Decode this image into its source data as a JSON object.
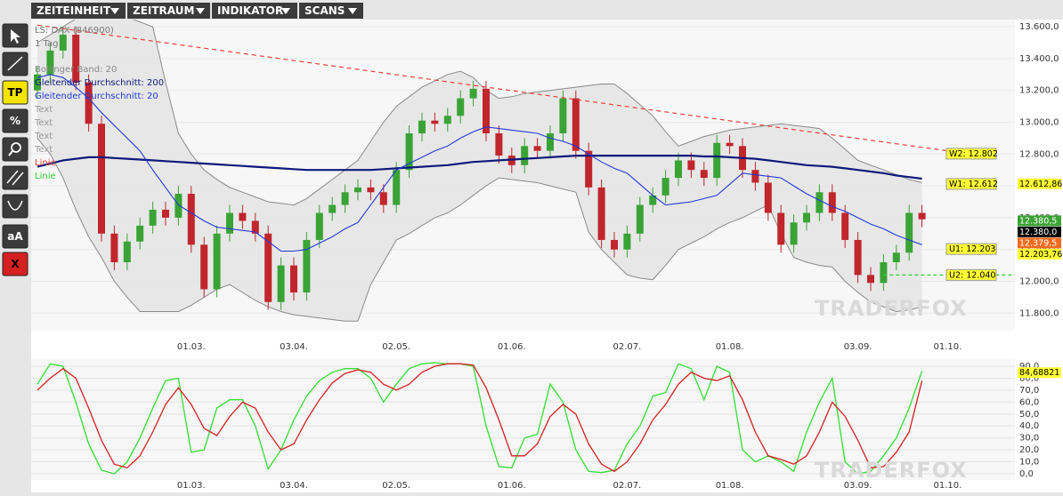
{
  "toolbar": [
    "ZEITEINHEIT",
    "ZEITRAUM",
    "INDIKATOR",
    "SCANS"
  ],
  "tools": [
    "TP",
    "%",
    "aA",
    "X"
  ],
  "watermark": "TRADERFOX",
  "chart_data": [
    {
      "type": "candlestick",
      "info": [
        "LS: DAX (846900)",
        "1 Tag"
      ],
      "categories": [
        null,
        null,
        null,
        null,
        null,
        null,
        null,
        null,
        null,
        null,
        null,
        null,
        "01.03.",
        null,
        null,
        null,
        null,
        null,
        null,
        null,
        "03.04.",
        null,
        null,
        null,
        null,
        null,
        null,
        null,
        "02.05.",
        null,
        null,
        null,
        null,
        null,
        null,
        null,
        null,
        "01.06.",
        null,
        null,
        null,
        null,
        null,
        null,
        null,
        null,
        "02.07.",
        null,
        null,
        null,
        null,
        null,
        null,
        null,
        "01.08.",
        null,
        null,
        null,
        null,
        null,
        null,
        null,
        null,
        null,
        "03.09.",
        null,
        null,
        null,
        null,
        null,
        null,
        "01.10."
      ],
      "open": [
        13200,
        13300,
        13450,
        13550,
        13250,
        12990,
        12300,
        12120,
        12250,
        12350,
        12450,
        12400,
        12550,
        12230,
        11950,
        12300,
        12430,
        12380,
        12300,
        11870,
        12100,
        11930,
        12260,
        12430,
        12480,
        12560,
        12590,
        12560,
        12480,
        12700,
        12930,
        13010,
        12990,
        13040,
        13150,
        13210,
        12930,
        12790,
        12730,
        12850,
        12820,
        12930,
        13150,
        12820,
        12590,
        12260,
        12200,
        12300,
        12480,
        12540,
        12650,
        12760,
        12700,
        12650,
        12870,
        12850,
        12700,
        12620,
        12430,
        12230,
        12370,
        12430,
        12560,
        12430,
        12260,
        12040,
        11990,
        12120,
        12180,
        12430,
        null,
        null
      ],
      "high": [
        13350,
        13500,
        13600,
        13600,
        13300,
        13040,
        12350,
        12300,
        12400,
        12500,
        12500,
        12600,
        12600,
        12280,
        12350,
        12480,
        12480,
        12430,
        12350,
        12150,
        12150,
        12310,
        12480,
        12530,
        12610,
        12640,
        12640,
        12610,
        12750,
        12980,
        13060,
        13060,
        13090,
        13200,
        13260,
        13260,
        12980,
        12840,
        12900,
        12900,
        12980,
        13200,
        13200,
        12870,
        12640,
        12310,
        12350,
        12530,
        12590,
        12700,
        12810,
        12810,
        12750,
        12920,
        12920,
        12900,
        12750,
        12670,
        12480,
        12420,
        12480,
        12610,
        12610,
        12480,
        12310,
        12090,
        12170,
        12230,
        12480,
        12480,
        null,
        null
      ],
      "low": [
        13150,
        13250,
        13400,
        13200,
        12940,
        12250,
        12070,
        12070,
        12200,
        12300,
        12350,
        12350,
        12180,
        11900,
        11900,
        12250,
        12330,
        12250,
        11820,
        11820,
        11880,
        11880,
        12210,
        12380,
        12430,
        12510,
        12510,
        12430,
        12430,
        12650,
        12880,
        12940,
        12940,
        12990,
        13100,
        12880,
        12740,
        12680,
        12680,
        12770,
        12770,
        12880,
        12770,
        12540,
        12210,
        12150,
        12150,
        12250,
        12430,
        12490,
        12600,
        12650,
        12600,
        12600,
        12800,
        12650,
        12570,
        12380,
        12180,
        12180,
        12320,
        12380,
        12380,
        12210,
        11990,
        11940,
        11940,
        12070,
        12130,
        12340,
        null,
        null
      ],
      "close": [
        13300,
        13450,
        13550,
        13250,
        12990,
        12300,
        12120,
        12250,
        12350,
        12450,
        12400,
        12550,
        12230,
        11950,
        12300,
        12430,
        12380,
        12300,
        11870,
        12100,
        11930,
        12260,
        12430,
        12480,
        12560,
        12590,
        12560,
        12480,
        12700,
        12930,
        13010,
        12990,
        13040,
        13150,
        13210,
        12930,
        12790,
        12730,
        12850,
        12820,
        12930,
        13150,
        12820,
        12590,
        12260,
        12200,
        12300,
        12480,
        12540,
        12650,
        12760,
        12700,
        12650,
        12870,
        12850,
        12700,
        12620,
        12430,
        12230,
        12370,
        12430,
        12560,
        12430,
        12260,
        12040,
        11990,
        12120,
        12180,
        12430,
        12390,
        null,
        null
      ],
      "up_color": "#3aa335",
      "down_color": "#c0262c",
      "bands": {
        "name": "Bollinger Band: 20",
        "color": "#8a8a8a",
        "fill": "#e4e4e4",
        "upper": [
          13500,
          13550,
          13600,
          13650,
          13680,
          13680,
          13680,
          13660,
          13630,
          13600,
          13250,
          12930,
          12800,
          12700,
          12640,
          12590,
          12560,
          12530,
          12500,
          12490,
          12480,
          12520,
          12580,
          12640,
          12700,
          12760,
          12880,
          13000,
          13100,
          13160,
          13220,
          13260,
          13300,
          13320,
          13280,
          13200,
          13150,
          13160,
          13180,
          13190,
          13200,
          13210,
          13220,
          13230,
          13240,
          13240,
          13180,
          13110,
          13040,
          12940,
          12850,
          12880,
          12910,
          12930,
          12950,
          12960,
          12970,
          12980,
          12990,
          12980,
          12970,
          12960,
          12900,
          12830,
          12760,
          12730,
          12700,
          12670,
          12640,
          12620,
          null,
          null
        ],
        "lower": [
          12900,
          12800,
          12650,
          12450,
          12280,
          12150,
          12000,
          11900,
          11810,
          11810,
          11810,
          11810,
          11850,
          11900,
          11950,
          11980,
          11930,
          11880,
          11840,
          11810,
          11790,
          11780,
          11770,
          11760,
          11750,
          11750,
          11980,
          12120,
          12260,
          12300,
          12350,
          12400,
          12430,
          12480,
          12540,
          12600,
          12650,
          12640,
          12630,
          12620,
          12600,
          12580,
          12560,
          12310,
          12200,
          12120,
          12040,
          12020,
          12010,
          12100,
          12200,
          12240,
          12280,
          12330,
          12370,
          12400,
          12440,
          12480,
          12300,
          12150,
          12120,
          12100,
          12090,
          12000,
          11930,
          11870,
          11840,
          11810,
          11820,
          11840,
          null,
          null
        ]
      },
      "series": [
        {
          "name": "Gleitender Durchschnitt: 200",
          "color": "#0d1a7a",
          "width": 2.2,
          "values": [
            12720,
            12740,
            12760,
            12770,
            12780,
            12780,
            12775,
            12770,
            12765,
            12760,
            12755,
            12750,
            12745,
            12740,
            12735,
            12730,
            12725,
            12720,
            12715,
            12710,
            12705,
            12700,
            12700,
            12700,
            12700,
            12700,
            12700,
            12705,
            12710,
            12715,
            12720,
            12725,
            12730,
            12740,
            12750,
            12755,
            12760,
            12765,
            12770,
            12775,
            12780,
            12785,
            12790,
            12790,
            12790,
            12790,
            12790,
            12790,
            12790,
            12790,
            12790,
            12790,
            12785,
            12785,
            12780,
            12775,
            12770,
            12760,
            12750,
            12740,
            12730,
            12725,
            12720,
            12710,
            12700,
            12690,
            12680,
            12665,
            12655,
            12645,
            null,
            null
          ]
        },
        {
          "name": "Gleitender Durchschnitt: 20",
          "color": "#2438d6",
          "width": 1.1,
          "values": [
            13280,
            13300,
            13280,
            13220,
            13150,
            13060,
            12980,
            12900,
            12820,
            12700,
            12590,
            12480,
            12430,
            12380,
            12340,
            12330,
            12320,
            12310,
            12250,
            12190,
            12190,
            12200,
            12240,
            12280,
            12330,
            12370,
            12480,
            12590,
            12700,
            12740,
            12780,
            12820,
            12850,
            12900,
            12940,
            12970,
            12960,
            12950,
            12940,
            12930,
            12900,
            12880,
            12850,
            12800,
            12750,
            12710,
            12680,
            12610,
            12540,
            12480,
            12490,
            12500,
            12520,
            12540,
            12610,
            12680,
            12670,
            12660,
            12650,
            12600,
            12550,
            12510,
            12470,
            12440,
            12400,
            12360,
            12330,
            12290,
            12260,
            12230,
            null,
            null
          ]
        }
      ],
      "drawing_labels": [
        {
          "text": "Text",
          "color": "#999999"
        },
        {
          "text": "Text",
          "color": "#999999"
        },
        {
          "text": "Text",
          "color": "#999999"
        },
        {
          "text": "Text",
          "color": "#999999"
        }
      ],
      "trend_line": {
        "name": "Linie",
        "color": "#e8413c",
        "values": [
          13610,
          12820
        ]
      },
      "level_line": {
        "name": "Linie",
        "color": "#33cc33",
        "value": 12040
      },
      "levels": [
        {
          "label": "W2: 12.802",
          "value": 12802
        },
        {
          "label": "W1: 12.612",
          "value": 12612
        },
        {
          "label": "U1: 12.203",
          "value": 12203
        },
        {
          "label": "U2: 12.040",
          "value": 12040
        }
      ],
      "price_labels": [
        {
          "value": 12612.86,
          "label": "12.612,86",
          "color": "#ffff33",
          "text_color": "#000000"
        },
        {
          "value": 12380.5,
          "label": "12.380,5",
          "color": "#3aa335",
          "text_color": "#ffffff"
        },
        {
          "value": 12380.0,
          "label": "12.380,0",
          "color": "#000000",
          "text_color": "#ffffff"
        },
        {
          "value": 12379.5,
          "label": "12.379,5",
          "color": "#f26b1d",
          "text_color": "#ffffff"
        },
        {
          "value": 12203.76,
          "label": "12.203,76",
          "color": "#ffff33",
          "text_color": "#000000"
        }
      ],
      "ylim": [
        11690,
        13645
      ],
      "yticks": [
        {
          "value": 11800,
          "label": "11.800,0"
        },
        {
          "value": 12000,
          "label": "12.000,0"
        },
        {
          "value": 12200,
          "label": "12.200,0"
        },
        {
          "value": 12400,
          "label": "12.400,0"
        },
        {
          "value": 12600,
          "label": "12.600,0"
        },
        {
          "value": 12800,
          "label": "12.800,0"
        },
        {
          "value": 13000,
          "label": "13.000,0"
        },
        {
          "value": 13200,
          "label": "13.200,0"
        },
        {
          "value": 13400,
          "label": "13.400,0"
        },
        {
          "value": 13600,
          "label": "13.600,0"
        }
      ]
    },
    {
      "type": "line",
      "categories": [
        null,
        null,
        null,
        null,
        null,
        null,
        null,
        null,
        null,
        null,
        null,
        null,
        "01.03.",
        null,
        null,
        null,
        null,
        null,
        null,
        null,
        "03.04.",
        null,
        null,
        null,
        null,
        null,
        null,
        null,
        "02.05.",
        null,
        null,
        null,
        null,
        null,
        null,
        null,
        null,
        "01.06.",
        null,
        null,
        null,
        null,
        null,
        null,
        null,
        null,
        "02.07.",
        null,
        null,
        null,
        null,
        null,
        null,
        null,
        "01.08.",
        null,
        null,
        null,
        null,
        null,
        null,
        null,
        null,
        null,
        "03.09.",
        null,
        null,
        null,
        null,
        null,
        null,
        "01.10."
      ],
      "series": [
        {
          "color": "#33dd33",
          "values": [
            75,
            92,
            90,
            60,
            25,
            3,
            0,
            10,
            30,
            55,
            78,
            80,
            18,
            20,
            55,
            62,
            62,
            40,
            4,
            20,
            45,
            65,
            78,
            85,
            88,
            88,
            80,
            60,
            75,
            88,
            92,
            93,
            92,
            92,
            90,
            40,
            6,
            5,
            30,
            33,
            75,
            60,
            20,
            2,
            1,
            3,
            25,
            40,
            65,
            68,
            92,
            88,
            62,
            90,
            85,
            20,
            10,
            15,
            10,
            2,
            35,
            60,
            80,
            10,
            0,
            2,
            15,
            30,
            55,
            86,
            null,
            null
          ]
        },
        {
          "color": "#d42020",
          "values": [
            70,
            80,
            88,
            80,
            55,
            28,
            8,
            5,
            15,
            35,
            58,
            72,
            58,
            38,
            32,
            48,
            60,
            55,
            35,
            20,
            25,
            45,
            62,
            76,
            84,
            87,
            85,
            75,
            70,
            75,
            85,
            90,
            92,
            92,
            91,
            72,
            45,
            15,
            15,
            25,
            48,
            58,
            50,
            25,
            8,
            2,
            10,
            25,
            45,
            58,
            75,
            85,
            80,
            78,
            82,
            62,
            35,
            15,
            12,
            8,
            15,
            35,
            60,
            48,
            28,
            5,
            6,
            18,
            35,
            78,
            null,
            null
          ]
        }
      ],
      "last_value": 84.68821,
      "last_value_label": "84,68821",
      "ylim": [
        0,
        93
      ],
      "yticks": [
        {
          "value": 0,
          "label": "0,0"
        },
        {
          "value": 10,
          "label": "10,0"
        },
        {
          "value": 20,
          "label": "20,0"
        },
        {
          "value": 30,
          "label": "30,0"
        },
        {
          "value": 40,
          "label": "40,0"
        },
        {
          "value": 50,
          "label": "50,0"
        },
        {
          "value": 60,
          "label": "60,0"
        },
        {
          "value": 70,
          "label": "70,0"
        },
        {
          "value": 80,
          "label": "80,0"
        },
        {
          "value": 90,
          "label": "90,0"
        }
      ]
    }
  ]
}
